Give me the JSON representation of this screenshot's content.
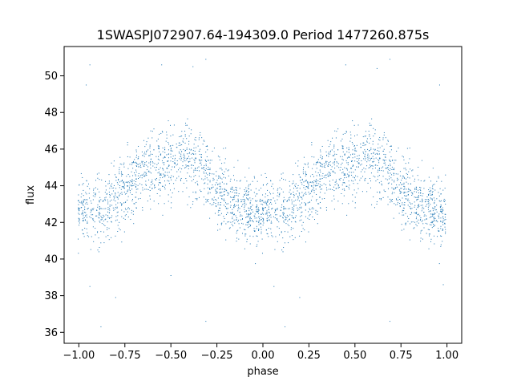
{
  "chart_data": {
    "type": "scatter",
    "title": "1SWASPJ072907.64-194309.0 Period 1477260.875s",
    "xlabel": "phase",
    "ylabel": "flux",
    "xlim": [
      -1.08,
      1.08
    ],
    "ylim": [
      35.4,
      51.6
    ],
    "x_ticks": [
      "−1.00",
      "−0.75",
      "−0.50",
      "−0.25",
      "0.00",
      "0.25",
      "0.50",
      "0.75",
      "1.00"
    ],
    "x_tick_values": [
      -1.0,
      -0.75,
      -0.5,
      -0.25,
      0.0,
      0.25,
      0.5,
      0.75,
      1.0
    ],
    "y_ticks": [
      "36",
      "38",
      "40",
      "42",
      "44",
      "46",
      "48",
      "50"
    ],
    "y_tick_values": [
      36,
      38,
      40,
      42,
      44,
      46,
      48,
      50
    ],
    "grid": false,
    "point_color": "#1f77b4",
    "series": [
      {
        "profile_phase": [
          0.0,
          0.05,
          0.1,
          0.15,
          0.2,
          0.25,
          0.3,
          0.35,
          0.4,
          0.45,
          0.5,
          0.55,
          0.6,
          0.65,
          0.7,
          0.75,
          0.8,
          0.85,
          0.9,
          0.95,
          1.0
        ],
        "profile_flux": [
          42.6,
          43.0,
          42.9,
          42.8,
          43.3,
          43.8,
          44.2,
          44.7,
          45.0,
          45.1,
          45.2,
          45.6,
          45.5,
          45.3,
          44.6,
          43.8,
          43.5,
          43.2,
          42.8,
          42.5,
          42.6
        ],
        "scatter_spread": 1.6,
        "outliers": [
          [
            -0.94,
            50.6
          ],
          [
            -0.55,
            50.6
          ],
          [
            -0.38,
            50.5
          ],
          [
            -0.31,
            50.9
          ],
          [
            -0.96,
            49.5
          ],
          [
            0.69,
            50.9
          ],
          [
            0.45,
            50.6
          ],
          [
            0.62,
            50.4
          ],
          [
            0.96,
            49.5
          ],
          [
            -0.8,
            37.9
          ],
          [
            -0.94,
            38.5
          ],
          [
            -0.88,
            36.3
          ],
          [
            0.2,
            37.9
          ],
          [
            0.06,
            38.5
          ],
          [
            0.12,
            36.3
          ],
          [
            -0.02,
            35.4
          ],
          [
            0.98,
            38.6
          ],
          [
            -0.31,
            36.6
          ],
          [
            0.69,
            36.6
          ],
          [
            -0.5,
            39.1
          ]
        ]
      }
    ]
  }
}
